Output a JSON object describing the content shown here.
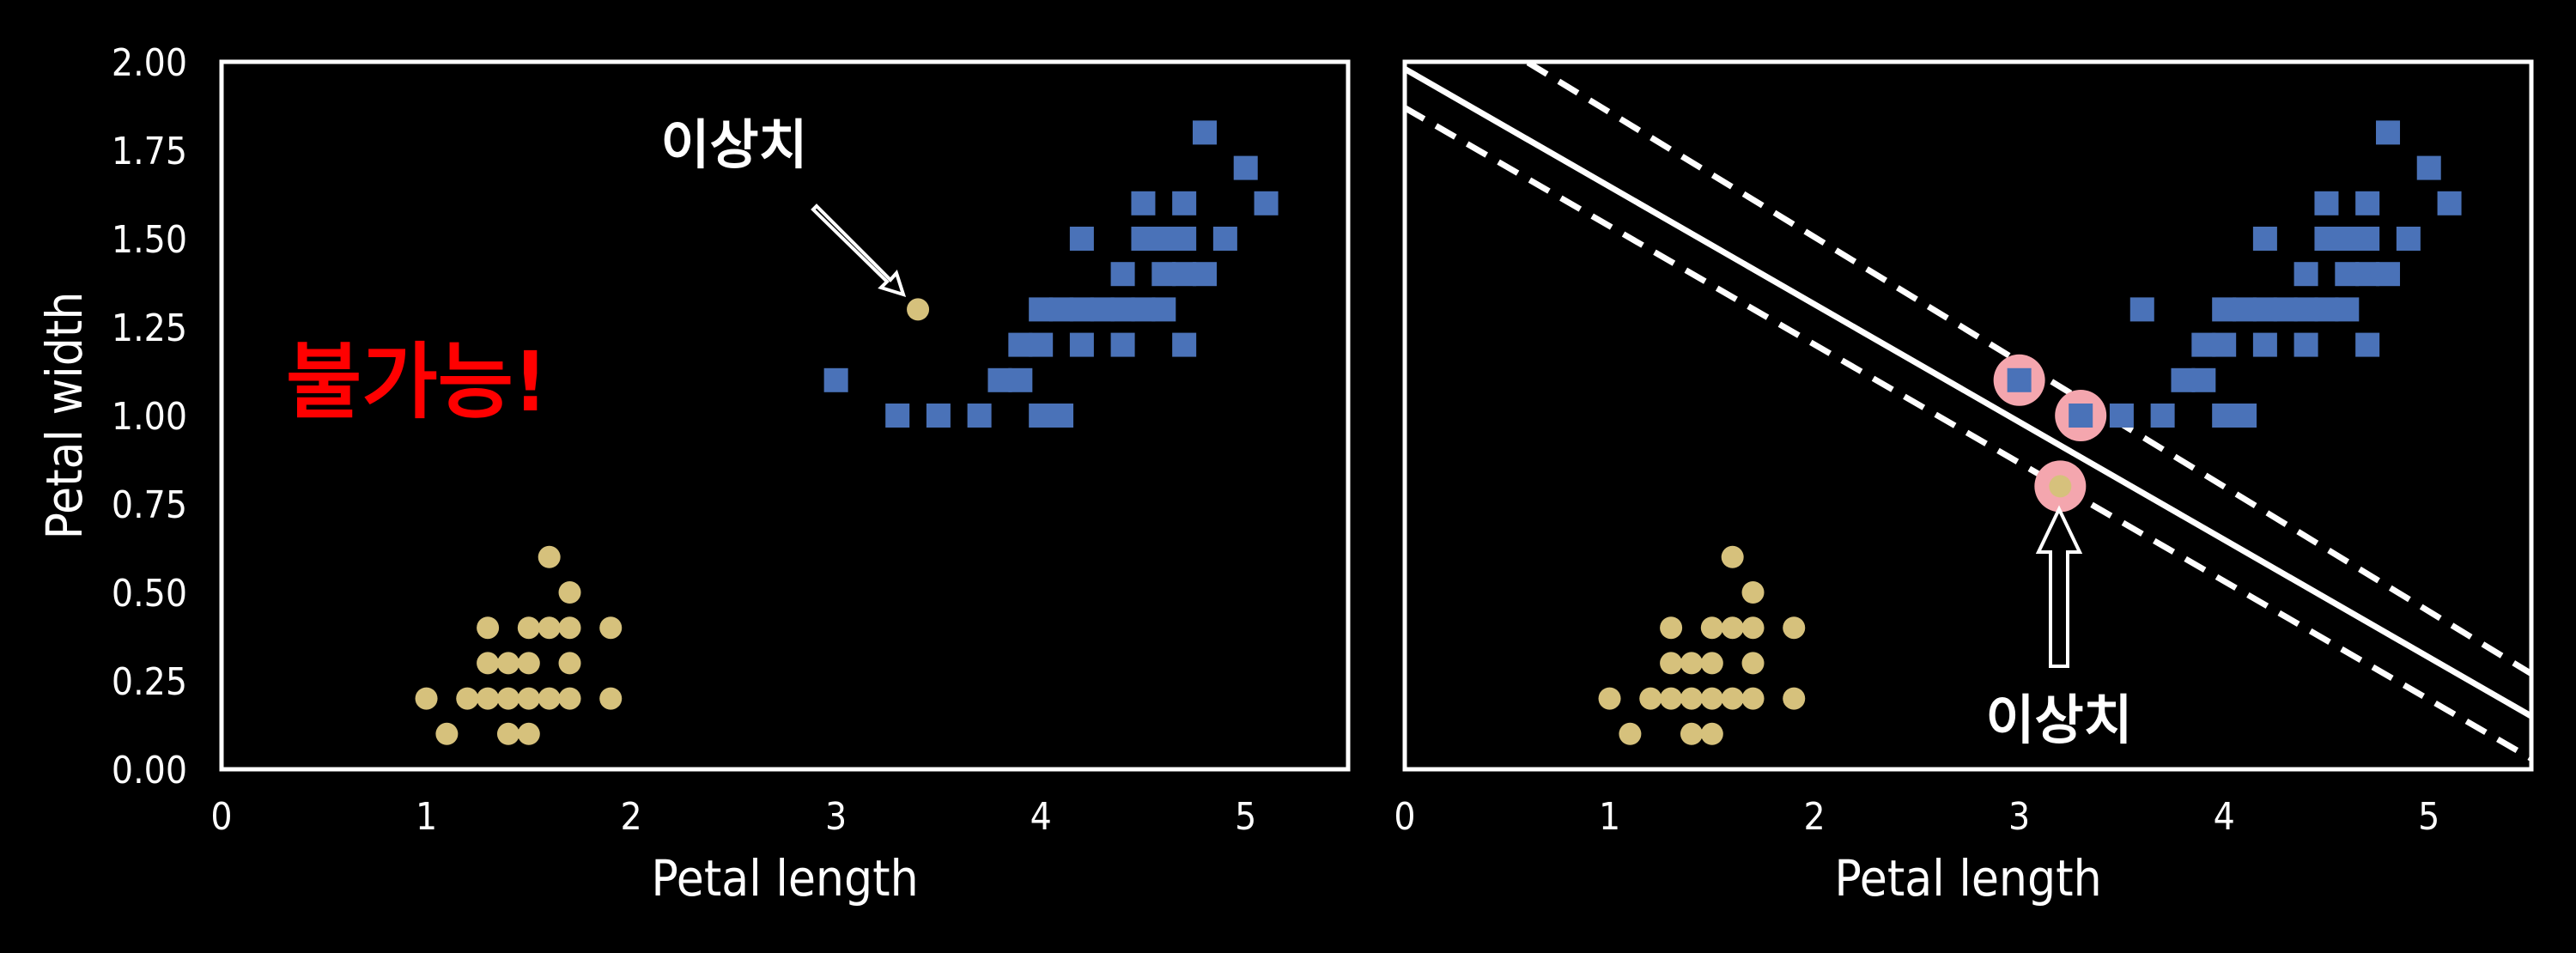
{
  "colors": {
    "background": "#000000",
    "frame": "#ffffff",
    "class_a": "#d6c17c",
    "class_b": "#4a72b8",
    "support_highlight": "#f4a6ae",
    "impossible_text": "#ff0000"
  },
  "chart_data": [
    {
      "type": "scatter",
      "xlabel": "Petal length",
      "ylabel": "Petal width",
      "xlim": [
        0,
        5.5
      ],
      "ylim": [
        0,
        2
      ],
      "xticks": [
        "0",
        "1",
        "2",
        "3",
        "4",
        "5"
      ],
      "yticks": [
        "0.00",
        "0.25",
        "0.50",
        "0.75",
        "1.00",
        "1.25",
        "1.50",
        "1.75",
        "2.00"
      ],
      "series": [
        {
          "marker": "circle",
          "color": "#d6c17c",
          "points": [
            [
              1.0,
              0.2
            ],
            [
              1.1,
              0.1
            ],
            [
              1.2,
              0.2
            ],
            [
              1.3,
              0.2
            ],
            [
              1.3,
              0.3
            ],
            [
              1.3,
              0.4
            ],
            [
              1.4,
              0.1
            ],
            [
              1.4,
              0.2
            ],
            [
              1.4,
              0.3
            ],
            [
              1.5,
              0.1
            ],
            [
              1.5,
              0.2
            ],
            [
              1.5,
              0.3
            ],
            [
              1.5,
              0.4
            ],
            [
              1.6,
              0.2
            ],
            [
              1.6,
              0.4
            ],
            [
              1.6,
              0.6
            ],
            [
              1.7,
              0.2
            ],
            [
              1.7,
              0.3
            ],
            [
              1.7,
              0.4
            ],
            [
              1.7,
              0.5
            ],
            [
              1.9,
              0.2
            ],
            [
              1.9,
              0.4
            ],
            [
              3.4,
              1.3
            ]
          ]
        },
        {
          "marker": "square",
          "color": "#4a72b8",
          "points": [
            [
              3.0,
              1.1
            ],
            [
              3.3,
              1.0
            ],
            [
              3.5,
              1.0
            ],
            [
              3.7,
              1.0
            ],
            [
              3.8,
              1.1
            ],
            [
              3.9,
              1.1
            ],
            [
              3.9,
              1.2
            ],
            [
              4.0,
              1.0
            ],
            [
              4.0,
              1.2
            ],
            [
              4.0,
              1.3
            ],
            [
              4.1,
              1.0
            ],
            [
              4.1,
              1.3
            ],
            [
              4.2,
              1.2
            ],
            [
              4.2,
              1.3
            ],
            [
              4.2,
              1.5
            ],
            [
              4.3,
              1.3
            ],
            [
              4.4,
              1.2
            ],
            [
              4.4,
              1.3
            ],
            [
              4.4,
              1.4
            ],
            [
              4.5,
              1.3
            ],
            [
              4.5,
              1.5
            ],
            [
              4.5,
              1.6
            ],
            [
              4.6,
              1.3
            ],
            [
              4.6,
              1.4
            ],
            [
              4.6,
              1.5
            ],
            [
              4.7,
              1.2
            ],
            [
              4.7,
              1.4
            ],
            [
              4.7,
              1.5
            ],
            [
              4.7,
              1.6
            ],
            [
              4.8,
              1.4
            ],
            [
              4.8,
              1.8
            ],
            [
              4.9,
              1.5
            ],
            [
              5.0,
              1.7
            ],
            [
              5.1,
              1.6
            ]
          ]
        }
      ],
      "annotations": [
        {
          "text": "이상치",
          "target": [
            3.4,
            1.3
          ]
        },
        {
          "text": "불가능!",
          "color": "#ff0000"
        }
      ]
    },
    {
      "type": "scatter",
      "xlabel": "Petal length",
      "xlim": [
        0,
        5.5
      ],
      "ylim": [
        0,
        2
      ],
      "xticks": [
        "0",
        "1",
        "2",
        "3",
        "4",
        "5"
      ],
      "series": [
        {
          "marker": "circle",
          "color": "#d6c17c",
          "points": [
            [
              1.0,
              0.2
            ],
            [
              1.1,
              0.1
            ],
            [
              1.2,
              0.2
            ],
            [
              1.3,
              0.2
            ],
            [
              1.3,
              0.3
            ],
            [
              1.3,
              0.4
            ],
            [
              1.4,
              0.1
            ],
            [
              1.4,
              0.2
            ],
            [
              1.4,
              0.3
            ],
            [
              1.5,
              0.1
            ],
            [
              1.5,
              0.2
            ],
            [
              1.5,
              0.3
            ],
            [
              1.5,
              0.4
            ],
            [
              1.6,
              0.2
            ],
            [
              1.6,
              0.4
            ],
            [
              1.6,
              0.6
            ],
            [
              1.7,
              0.2
            ],
            [
              1.7,
              0.3
            ],
            [
              1.7,
              0.4
            ],
            [
              1.7,
              0.5
            ],
            [
              1.9,
              0.2
            ],
            [
              1.9,
              0.4
            ],
            [
              3.2,
              0.8
            ]
          ]
        },
        {
          "marker": "square",
          "color": "#4a72b8",
          "points": [
            [
              3.0,
              1.1
            ],
            [
              3.3,
              1.0
            ],
            [
              3.5,
              1.0
            ],
            [
              3.6,
              1.3
            ],
            [
              3.7,
              1.0
            ],
            [
              3.8,
              1.1
            ],
            [
              3.9,
              1.1
            ],
            [
              3.9,
              1.2
            ],
            [
              4.0,
              1.0
            ],
            [
              4.0,
              1.2
            ],
            [
              4.0,
              1.3
            ],
            [
              4.1,
              1.0
            ],
            [
              4.1,
              1.3
            ],
            [
              4.2,
              1.2
            ],
            [
              4.2,
              1.3
            ],
            [
              4.2,
              1.5
            ],
            [
              4.3,
              1.3
            ],
            [
              4.4,
              1.2
            ],
            [
              4.4,
              1.3
            ],
            [
              4.4,
              1.4
            ],
            [
              4.5,
              1.3
            ],
            [
              4.5,
              1.5
            ],
            [
              4.5,
              1.6
            ],
            [
              4.6,
              1.3
            ],
            [
              4.6,
              1.4
            ],
            [
              4.6,
              1.5
            ],
            [
              4.7,
              1.2
            ],
            [
              4.7,
              1.4
            ],
            [
              4.7,
              1.5
            ],
            [
              4.7,
              1.6
            ],
            [
              4.8,
              1.4
            ],
            [
              4.8,
              1.8
            ],
            [
              4.9,
              1.5
            ],
            [
              5.0,
              1.7
            ],
            [
              5.1,
              1.6
            ]
          ]
        }
      ],
      "decision_boundary": [
        [
          0,
          1.98
        ],
        [
          5.5,
          0.15
        ]
      ],
      "margin_lines": [
        [
          [
            0,
            2.21
          ],
          [
            5.5,
            0.27
          ]
        ],
        [
          [
            0,
            1.87
          ],
          [
            5.5,
            0.03
          ]
        ]
      ],
      "support_vectors": [
        [
          3.0,
          1.1
        ],
        [
          3.3,
          1.0
        ],
        [
          3.2,
          0.8
        ]
      ],
      "annotations": [
        {
          "text": "이상치",
          "target": [
            3.2,
            0.8
          ]
        }
      ]
    }
  ]
}
